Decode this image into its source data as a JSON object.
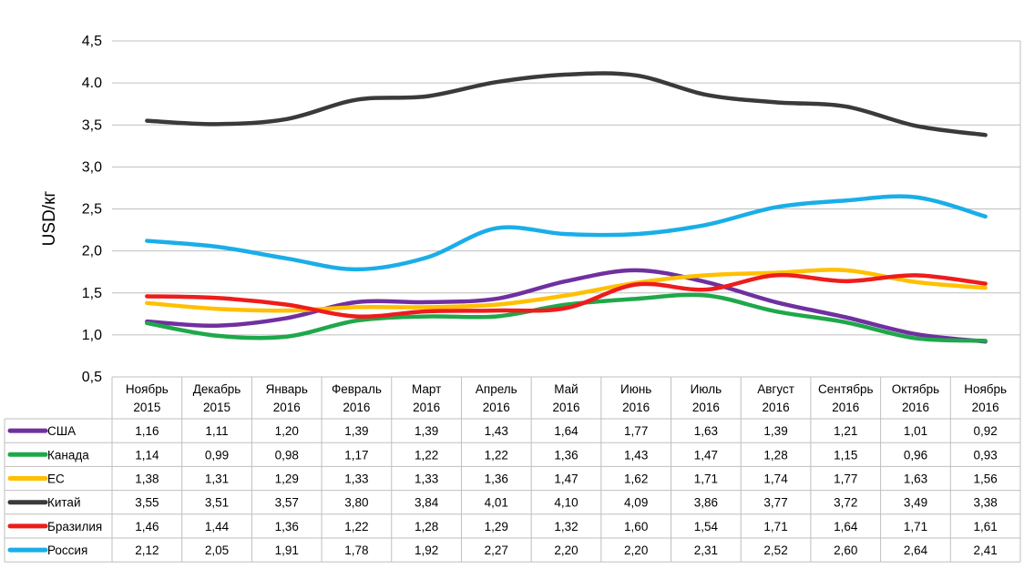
{
  "chart_data": {
    "type": "line",
    "title": "",
    "xlabel": "",
    "ylabel": "USD/кг",
    "ylim": [
      0.5,
      4.5
    ],
    "yticks": [
      "0,5",
      "1,0",
      "1,5",
      "2,0",
      "2,5",
      "3,0",
      "3,5",
      "4.0",
      "4,5"
    ],
    "grid": true,
    "legend_placement": "data-table-left",
    "categories": [
      [
        "Ноябрь",
        "2015"
      ],
      [
        "Декабрь",
        "2015"
      ],
      [
        "Январь",
        "2016"
      ],
      [
        "Февраль",
        "2016"
      ],
      [
        "Март",
        "2016"
      ],
      [
        "Апрель",
        "2016"
      ],
      [
        "Май",
        "2016"
      ],
      [
        "Июнь",
        "2016"
      ],
      [
        "Июль",
        "2016"
      ],
      [
        "Август",
        "2016"
      ],
      [
        "Сентябрь",
        "2016"
      ],
      [
        "Октябрь",
        "2016"
      ],
      [
        "Ноябрь",
        "2016"
      ]
    ],
    "series": [
      {
        "name": "США",
        "color": "#7030a0",
        "values": [
          1.16,
          1.11,
          1.2,
          1.39,
          1.39,
          1.43,
          1.64,
          1.77,
          1.63,
          1.39,
          1.21,
          1.01,
          0.92
        ],
        "labels": [
          "1,16",
          "1,11",
          "1,20",
          "1,39",
          "1,39",
          "1,43",
          "1,64",
          "1,77",
          "1,63",
          "1,39",
          "1,21",
          "1,01",
          "0,92"
        ]
      },
      {
        "name": "Канада",
        "color": "#1fa84a",
        "values": [
          1.14,
          0.99,
          0.98,
          1.17,
          1.22,
          1.22,
          1.36,
          1.43,
          1.47,
          1.28,
          1.15,
          0.96,
          0.93
        ],
        "labels": [
          "1,14",
          "0,99",
          "0,98",
          "1,17",
          "1,22",
          "1,22",
          "1,36",
          "1,43",
          "1,47",
          "1,28",
          "1,15",
          "0,96",
          "0,93"
        ]
      },
      {
        "name": "ЕС",
        "color": "#ffc000",
        "values": [
          1.38,
          1.31,
          1.29,
          1.33,
          1.33,
          1.36,
          1.47,
          1.62,
          1.71,
          1.74,
          1.77,
          1.63,
          1.56
        ],
        "labels": [
          "1,38",
          "1,31",
          "1,29",
          "1,33",
          "1,33",
          "1,36",
          "1,47",
          "1,62",
          "1,71",
          "1,74",
          "1,77",
          "1,63",
          "1,56"
        ]
      },
      {
        "name": "Китай",
        "color": "#3a3a3a",
        "values": [
          3.55,
          3.51,
          3.57,
          3.8,
          3.84,
          4.01,
          4.1,
          4.09,
          3.86,
          3.77,
          3.72,
          3.49,
          3.38
        ],
        "labels": [
          "3,55",
          "3,51",
          "3,57",
          "3,80",
          "3,84",
          "4,01",
          "4,10",
          "4,09",
          "3,86",
          "3,77",
          "3,72",
          "3,49",
          "3,38"
        ]
      },
      {
        "name": "Бразилия",
        "color": "#ee1c1c",
        "values": [
          1.46,
          1.44,
          1.36,
          1.22,
          1.28,
          1.29,
          1.32,
          1.6,
          1.54,
          1.71,
          1.64,
          1.71,
          1.61
        ],
        "labels": [
          "1,46",
          "1,44",
          "1,36",
          "1,22",
          "1,28",
          "1,29",
          "1,32",
          "1,60",
          "1,54",
          "1,71",
          "1,64",
          "1,71",
          "1,61"
        ]
      },
      {
        "name": "Россия",
        "color": "#1aaee8",
        "values": [
          2.12,
          2.05,
          1.91,
          1.78,
          1.92,
          2.27,
          2.2,
          2.2,
          2.31,
          2.52,
          2.6,
          2.64,
          2.41
        ],
        "labels": [
          "2,12",
          "2,05",
          "1,91",
          "1,78",
          "1,92",
          "2,27",
          "2,20",
          "2,20",
          "2,31",
          "2,52",
          "2,60",
          "2,64",
          "2,41"
        ]
      }
    ]
  }
}
